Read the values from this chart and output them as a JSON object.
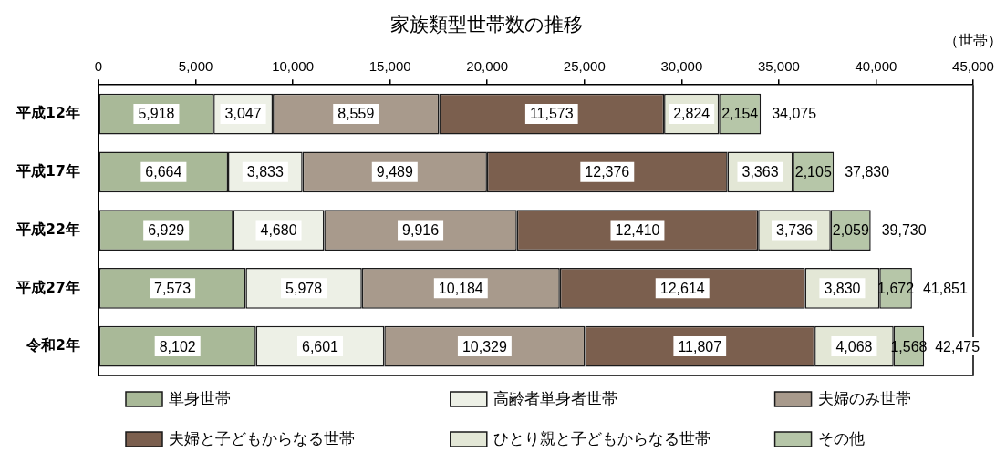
{
  "chart_data": {
    "type": "bar",
    "orientation": "horizontal",
    "stacked": true,
    "title": "家族類型世帯数の推移",
    "xlabel": "（世帯）",
    "categories": [
      "平成12年",
      "平成17年",
      "平成22年",
      "平成27年",
      "令和2年"
    ],
    "series": [
      {
        "name": "単身世帯",
        "color": "#a9b998",
        "values": [
          5918,
          6664,
          6929,
          7573,
          8102
        ],
        "value_labels": [
          "5,918",
          "6,664",
          "6,929",
          "7,573",
          "8,102"
        ]
      },
      {
        "name": "高齢者単身者世帯",
        "color": "#edf0e6",
        "values": [
          3047,
          3833,
          4680,
          5978,
          6601
        ],
        "value_labels": [
          "3,047",
          "3,833",
          "4,680",
          "5,978",
          "6,601"
        ]
      },
      {
        "name": "夫婦のみ世帯",
        "color": "#a89a8c",
        "values": [
          8559,
          9489,
          9916,
          10184,
          10329
        ],
        "value_labels": [
          "8,559",
          "9,489",
          "9,916",
          "10,184",
          "10,329"
        ]
      },
      {
        "name": "夫婦と子どもからなる世帯",
        "color": "#7b5f4e",
        "values": [
          11573,
          12376,
          12410,
          12614,
          11807
        ],
        "value_labels": [
          "11,573",
          "12,376",
          "12,410",
          "12,614",
          "11,807"
        ]
      },
      {
        "name": "ひとり親と子どもからなる世帯",
        "color": "#e3e7d6",
        "values": [
          2824,
          3363,
          3736,
          3830,
          4068
        ],
        "value_labels": [
          "2,824",
          "3,363",
          "3,736",
          "3,830",
          "4,068"
        ]
      },
      {
        "name": "その他",
        "color": "#b6c6a8",
        "values": [
          2154,
          2105,
          2059,
          1672,
          1568
        ],
        "value_labels": [
          "2,154",
          "2,105",
          "2,059",
          "1,672",
          "1,568"
        ]
      }
    ],
    "totals": [
      "34,075",
      "37,830",
      "39,730",
      "41,851",
      "42,475"
    ],
    "xlim": [
      0,
      45000
    ],
    "xticks": [
      0,
      {
        "value": 5000,
        "label": "5,000"
      },
      {
        "value": 10000,
        "label": "10,000"
      },
      {
        "value": 15000,
        "label": "15,000"
      },
      {
        "value": 20000,
        "label": "20,000"
      },
      {
        "value": 25000,
        "label": "25,000"
      },
      {
        "value": 30000,
        "label": "30,000"
      },
      {
        "value": 35000,
        "label": "35,000"
      },
      {
        "value": 40000,
        "label": "40,000"
      },
      {
        "value": 45000,
        "label": "45,000"
      }
    ],
    "legend": "bottom"
  }
}
